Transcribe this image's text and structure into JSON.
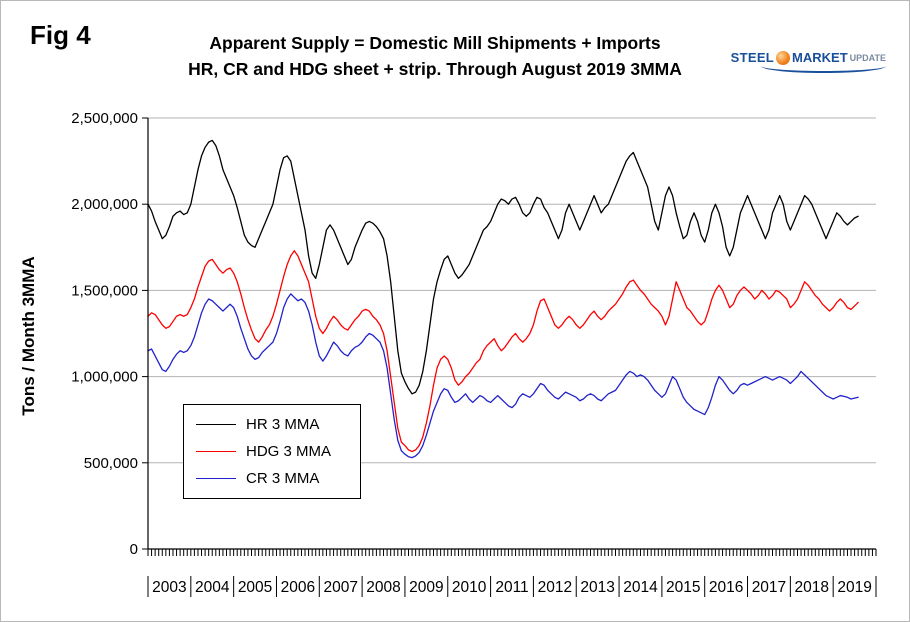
{
  "figure": {
    "label": "Fig 4"
  },
  "title": {
    "line1": "Apparent Supply = Domestic Mill Shipments + Imports",
    "line2": "HR, CR and HDG sheet + strip. Through August 2019 3MMA"
  },
  "logo": {
    "steel": "STEEL",
    "market": "MARKET",
    "update": "UPDATE",
    "brand_blue": "#1a4f9c",
    "brand_orange": "#f08018"
  },
  "chart_data": {
    "type": "line",
    "title": "Apparent Supply = Domestic Mill Shipments + Imports; HR, CR and HDG sheet + strip. Through August 2019 3MMA",
    "ylabel": "Tons / Month 3MMA",
    "xlabel": "",
    "x_frequency": "monthly",
    "x_start": "2003-01",
    "x_end": "2019-08",
    "year_labels": [
      "2003",
      "2004",
      "2005",
      "2006",
      "2007",
      "2008",
      "2009",
      "2010",
      "2011",
      "2012",
      "2013",
      "2014",
      "2015",
      "2016",
      "2017",
      "2018",
      "2019"
    ],
    "ylim_thousand_tons": [
      0,
      2500
    ],
    "ytick_values_thousand_tons": [
      0,
      500,
      1000,
      1500,
      2000,
      2500
    ],
    "ytick_labels": [
      "0",
      "500,000",
      "1,000,000",
      "1,500,000",
      "2,000,000",
      "2,500,000"
    ],
    "grid": "horizontal",
    "legend_position": "inside-lower-left",
    "value_unit": "thousand tons per month (3-month moving average)",
    "series": [
      {
        "name": "HR 3 MMA",
        "color": "#000000",
        "values_thousand_tons": [
          2000,
          1960,
          1900,
          1850,
          1800,
          1820,
          1870,
          1930,
          1950,
          1960,
          1940,
          1950,
          2000,
          2100,
          2200,
          2280,
          2330,
          2360,
          2370,
          2340,
          2280,
          2200,
          2150,
          2100,
          2050,
          1980,
          1900,
          1820,
          1780,
          1760,
          1750,
          1800,
          1850,
          1900,
          1950,
          2000,
          2100,
          2200,
          2270,
          2280,
          2250,
          2150,
          2050,
          1950,
          1850,
          1700,
          1600,
          1570,
          1650,
          1750,
          1850,
          1880,
          1850,
          1800,
          1750,
          1700,
          1650,
          1680,
          1750,
          1800,
          1850,
          1890,
          1900,
          1890,
          1870,
          1840,
          1800,
          1700,
          1550,
          1350,
          1150,
          1020,
          970,
          930,
          900,
          910,
          950,
          1030,
          1150,
          1300,
          1450,
          1550,
          1620,
          1680,
          1700,
          1650,
          1600,
          1570,
          1590,
          1620,
          1650,
          1700,
          1750,
          1800,
          1850,
          1870,
          1900,
          1950,
          2000,
          2030,
          2020,
          2000,
          2030,
          2040,
          2000,
          1950,
          1930,
          1950,
          2000,
          2040,
          2030,
          1980,
          1950,
          1900,
          1850,
          1800,
          1850,
          1950,
          2000,
          1950,
          1900,
          1850,
          1900,
          1950,
          2000,
          2050,
          2000,
          1950,
          1980,
          2000,
          2050,
          2100,
          2150,
          2200,
          2250,
          2280,
          2300,
          2250,
          2200,
          2150,
          2100,
          2000,
          1900,
          1850,
          1950,
          2050,
          2100,
          2050,
          1950,
          1870,
          1800,
          1820,
          1900,
          1950,
          1900,
          1820,
          1780,
          1850,
          1950,
          2000,
          1950,
          1870,
          1750,
          1700,
          1750,
          1850,
          1950,
          2000,
          2050,
          2000,
          1950,
          1900,
          1850,
          1800,
          1850,
          1950,
          2000,
          2050,
          2000,
          1900,
          1850,
          1900,
          1950,
          2000,
          2050,
          2030,
          2000,
          1950,
          1900,
          1850,
          1800,
          1850,
          1900,
          1950,
          1930,
          1900,
          1880,
          1900,
          1920,
          1930
        ]
      },
      {
        "name": "HDG 3 MMA",
        "color": "#ff0000",
        "values_thousand_tons": [
          1350,
          1370,
          1360,
          1330,
          1300,
          1280,
          1290,
          1320,
          1350,
          1360,
          1350,
          1360,
          1400,
          1450,
          1520,
          1580,
          1640,
          1670,
          1680,
          1650,
          1620,
          1600,
          1620,
          1630,
          1600,
          1550,
          1480,
          1400,
          1330,
          1270,
          1220,
          1200,
          1230,
          1270,
          1300,
          1350,
          1420,
          1500,
          1580,
          1650,
          1700,
          1730,
          1700,
          1650,
          1600,
          1550,
          1450,
          1350,
          1280,
          1250,
          1280,
          1320,
          1350,
          1330,
          1300,
          1280,
          1270,
          1300,
          1330,
          1350,
          1380,
          1390,
          1380,
          1350,
          1330,
          1300,
          1250,
          1150,
          1000,
          850,
          700,
          620,
          600,
          575,
          565,
          575,
          600,
          650,
          730,
          830,
          950,
          1050,
          1100,
          1120,
          1100,
          1050,
          980,
          950,
          970,
          1000,
          1020,
          1050,
          1080,
          1100,
          1150,
          1180,
          1200,
          1220,
          1180,
          1150,
          1170,
          1200,
          1230,
          1250,
          1220,
          1200,
          1220,
          1250,
          1300,
          1380,
          1440,
          1450,
          1400,
          1350,
          1300,
          1280,
          1300,
          1330,
          1350,
          1330,
          1300,
          1280,
          1300,
          1330,
          1360,
          1380,
          1350,
          1330,
          1350,
          1380,
          1400,
          1420,
          1450,
          1480,
          1520,
          1550,
          1560,
          1530,
          1500,
          1480,
          1450,
          1420,
          1400,
          1380,
          1350,
          1300,
          1350,
          1450,
          1550,
          1500,
          1450,
          1400,
          1380,
          1350,
          1320,
          1300,
          1320,
          1380,
          1450,
          1500,
          1530,
          1500,
          1450,
          1400,
          1420,
          1470,
          1500,
          1520,
          1500,
          1480,
          1450,
          1470,
          1500,
          1480,
          1450,
          1470,
          1500,
          1490,
          1470,
          1450,
          1400,
          1420,
          1450,
          1500,
          1550,
          1530,
          1500,
          1470,
          1450,
          1420,
          1400,
          1380,
          1400,
          1430,
          1450,
          1430,
          1400,
          1390,
          1410,
          1430
        ]
      },
      {
        "name": "CR 3 MMA",
        "color": "#2222cc",
        "values_thousand_tons": [
          1150,
          1160,
          1120,
          1080,
          1040,
          1030,
          1060,
          1100,
          1130,
          1150,
          1140,
          1150,
          1180,
          1230,
          1300,
          1370,
          1420,
          1450,
          1440,
          1420,
          1400,
          1380,
          1400,
          1420,
          1400,
          1350,
          1280,
          1220,
          1160,
          1120,
          1100,
          1110,
          1140,
          1160,
          1180,
          1200,
          1250,
          1320,
          1400,
          1450,
          1480,
          1460,
          1440,
          1450,
          1430,
          1380,
          1300,
          1200,
          1120,
          1090,
          1120,
          1160,
          1200,
          1180,
          1150,
          1130,
          1120,
          1150,
          1170,
          1180,
          1200,
          1230,
          1250,
          1240,
          1220,
          1200,
          1150,
          1050,
          900,
          750,
          630,
          570,
          550,
          535,
          530,
          540,
          560,
          600,
          660,
          730,
          800,
          850,
          900,
          930,
          920,
          880,
          850,
          860,
          880,
          900,
          870,
          850,
          870,
          890,
          880,
          860,
          850,
          870,
          890,
          870,
          850,
          830,
          820,
          840,
          880,
          900,
          890,
          880,
          900,
          930,
          960,
          950,
          920,
          900,
          880,
          870,
          890,
          910,
          900,
          890,
          880,
          860,
          870,
          890,
          900,
          890,
          870,
          860,
          880,
          900,
          910,
          920,
          950,
          980,
          1010,
          1030,
          1020,
          1000,
          1010,
          1000,
          980,
          950,
          920,
          900,
          880,
          900,
          950,
          1000,
          980,
          930,
          880,
          850,
          830,
          810,
          800,
          790,
          780,
          820,
          880,
          950,
          1000,
          980,
          950,
          920,
          900,
          920,
          950,
          960,
          950,
          960,
          970,
          980,
          990,
          1000,
          990,
          980,
          990,
          1000,
          990,
          980,
          960,
          980,
          1000,
          1030,
          1010,
          990,
          970,
          950,
          930,
          910,
          890,
          880,
          870,
          880,
          890,
          885,
          880,
          870,
          875,
          880
        ]
      }
    ]
  }
}
